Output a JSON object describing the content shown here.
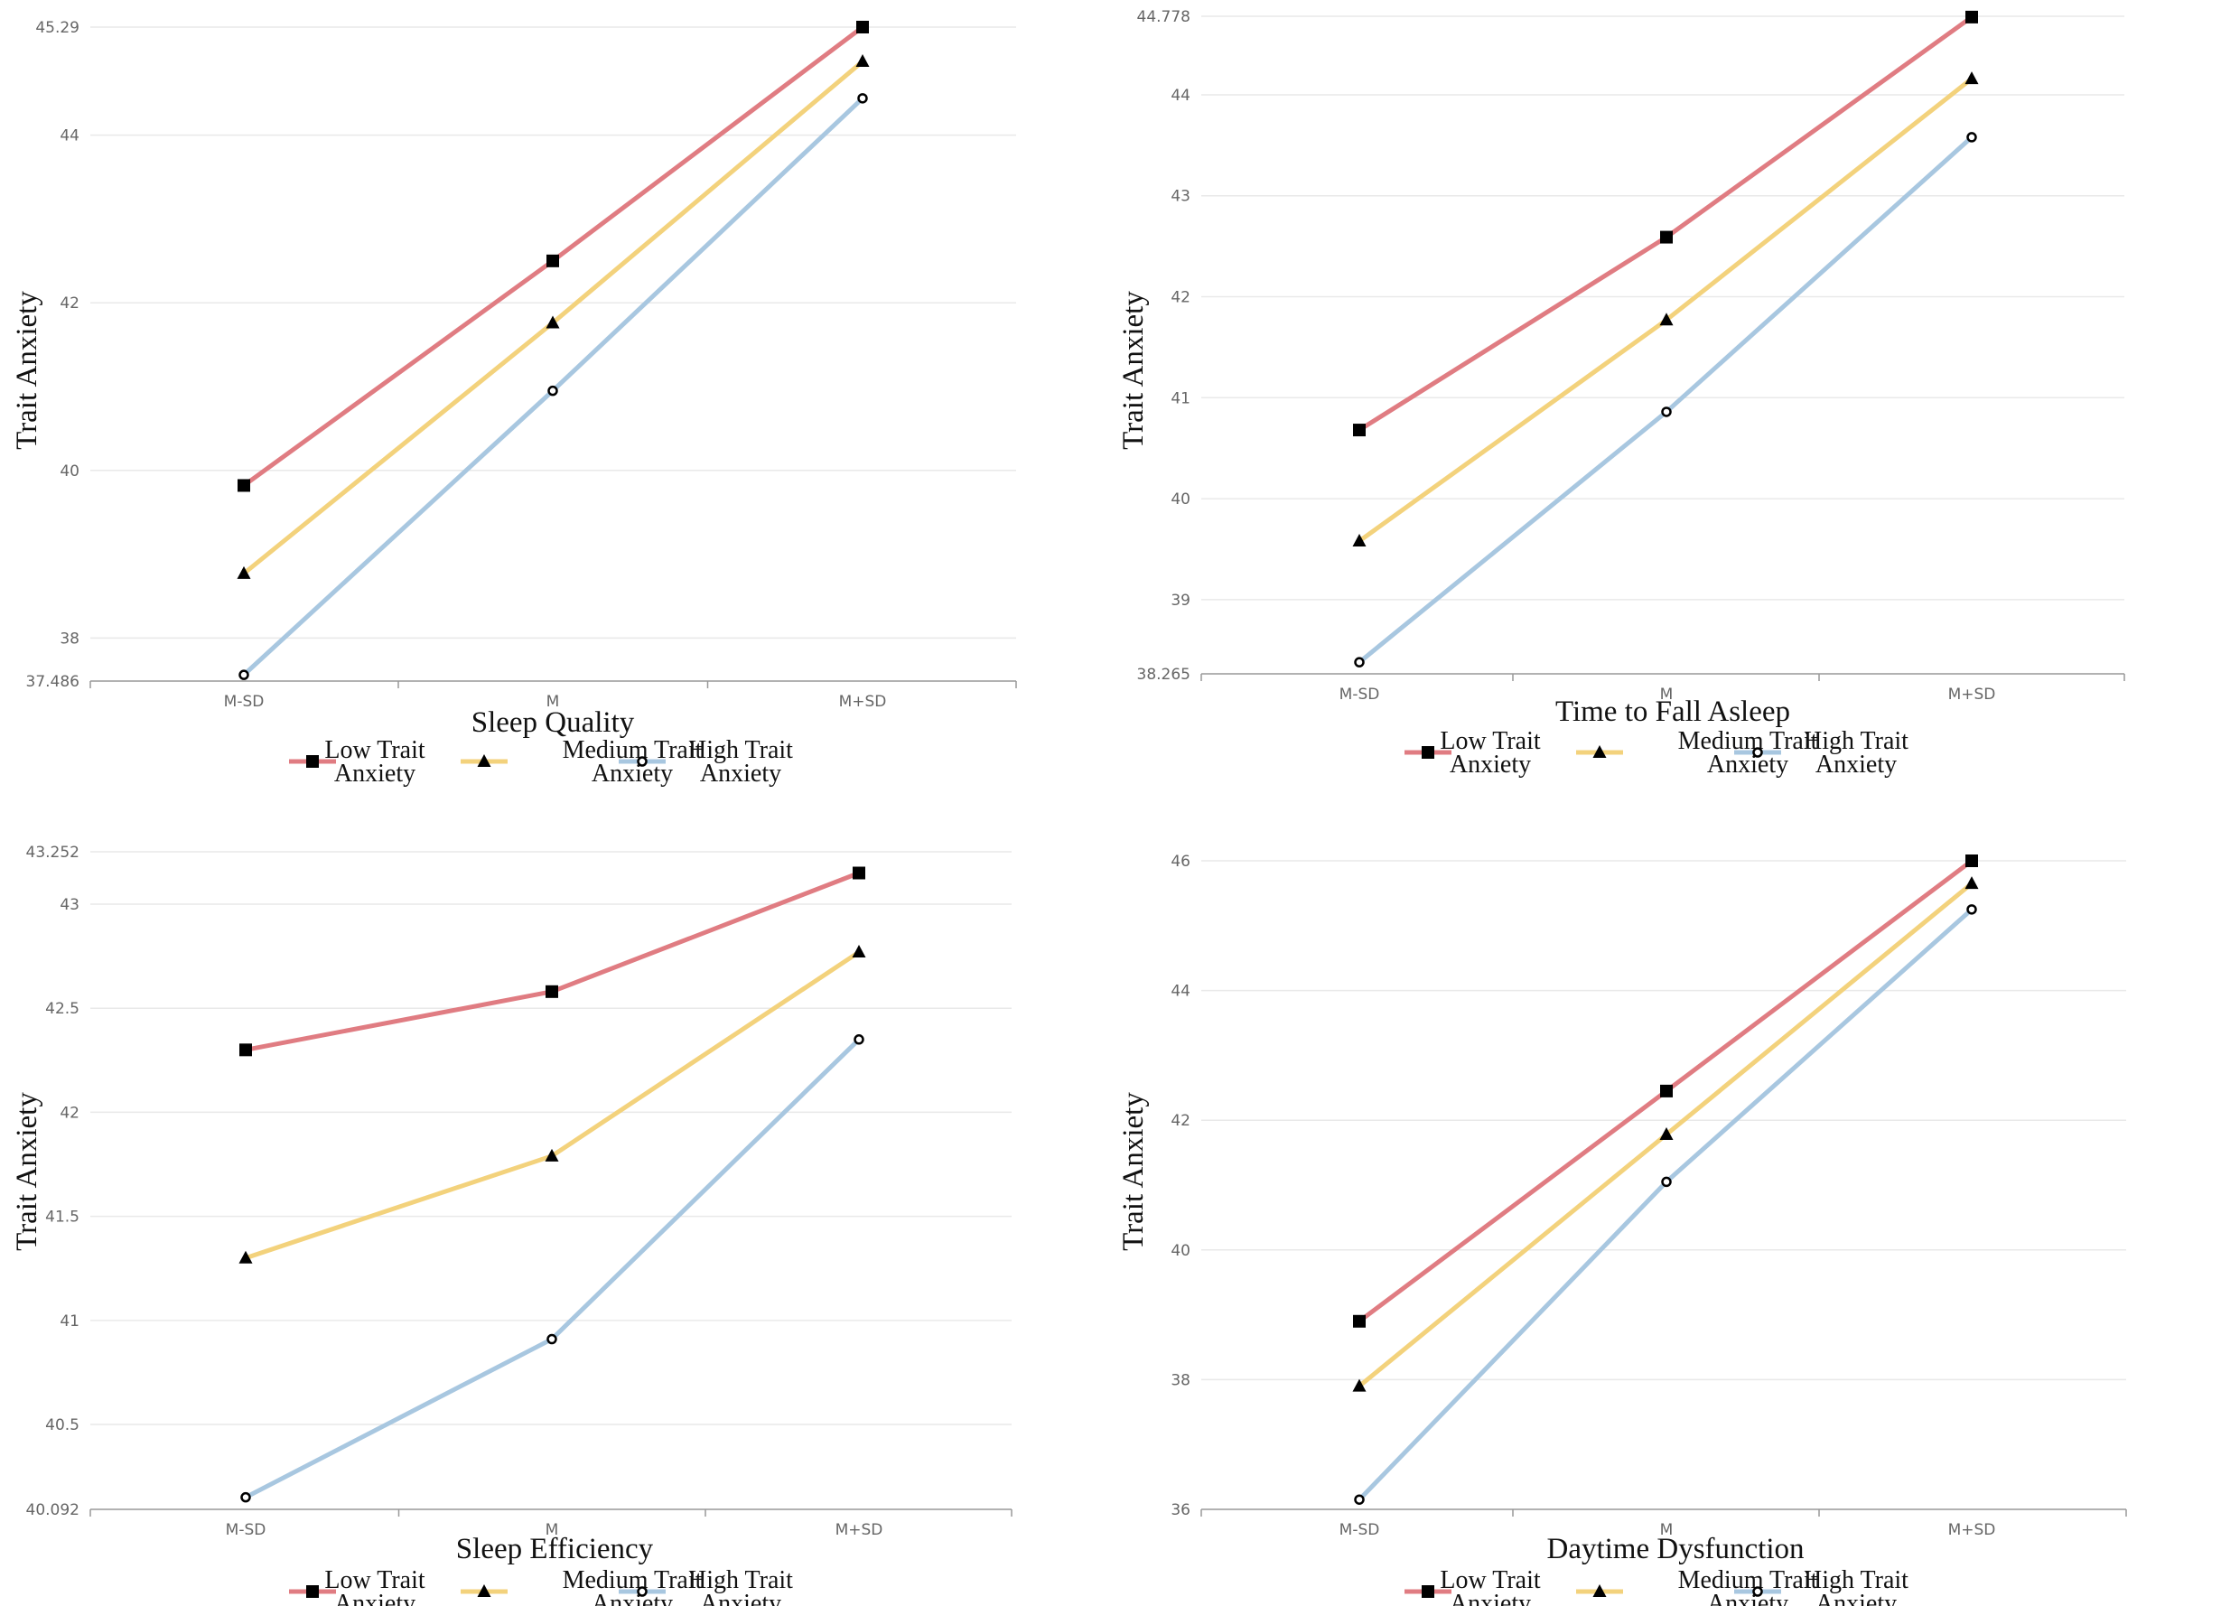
{
  "legend": [
    {
      "line1": "Low Trait",
      "line2": "Anxiety",
      "color": "#e07c82",
      "marker": "square"
    },
    {
      "line1": "Medium Trait",
      "line2": "Anxiety",
      "color": "#f3d27c",
      "marker": "triangle"
    },
    {
      "line1": "High Trait",
      "line2": "Anxiety",
      "color": "#a8c7e0",
      "marker": "circle"
    }
  ],
  "chart_data": [
    {
      "type": "line",
      "title": "Sleep Quality",
      "xlabel": "Sleep Quality",
      "ylabel": "Trait Anxiety",
      "categories": [
        "M-SD",
        "M",
        "M+SD"
      ],
      "ylim": [
        37.486,
        45.29
      ],
      "yticks": [
        "45.29",
        "44",
        "42",
        "40",
        "38",
        "37.486"
      ],
      "series": [
        {
          "name": "Low Trait Anxiety",
          "values": [
            39.82,
            42.5,
            45.29
          ]
        },
        {
          "name": "Medium Trait Anxiety",
          "values": [
            38.77,
            41.76,
            44.88
          ]
        },
        {
          "name": "High Trait Anxiety",
          "values": [
            37.56,
            40.95,
            44.44
          ]
        }
      ]
    },
    {
      "type": "line",
      "title": "Time to Fall Asleep",
      "xlabel": "Time to Fall Asleep",
      "ylabel": "Trait Anxiety",
      "categories": [
        "M-SD",
        "M",
        "M+SD"
      ],
      "ylim": [
        38.265,
        44.778
      ],
      "yticks": [
        "44.778",
        "44",
        "43",
        "42",
        "41",
        "40",
        "39",
        "38.265"
      ],
      "series": [
        {
          "name": "Low Trait Anxiety",
          "values": [
            40.68,
            42.59,
            44.77
          ]
        },
        {
          "name": "Medium Trait Anxiety",
          "values": [
            39.58,
            41.77,
            44.16
          ]
        },
        {
          "name": "High Trait Anxiety",
          "values": [
            38.38,
            40.86,
            43.58
          ]
        }
      ]
    },
    {
      "type": "line",
      "title": "Sleep Efficiency",
      "xlabel": "Sleep Efficiency",
      "ylabel": "Trait Anxiety",
      "categories": [
        "M-SD",
        "M",
        "M+SD"
      ],
      "ylim": [
        40.092,
        43.252
      ],
      "yticks": [
        "43.252",
        "43",
        "42.5",
        "42",
        "41.5",
        "41",
        "40.5",
        "40.092"
      ],
      "series": [
        {
          "name": "Low Trait Anxiety",
          "values": [
            42.3,
            42.58,
            43.15
          ]
        },
        {
          "name": "Medium Trait Anxiety",
          "values": [
            41.3,
            41.79,
            42.77
          ]
        },
        {
          "name": "High Trait Anxiety",
          "values": [
            40.15,
            40.91,
            42.35
          ]
        }
      ]
    },
    {
      "type": "line",
      "title": "Daytime Dysfunction",
      "xlabel": "Daytime Dysfunction",
      "ylabel": "Trait Anxiety",
      "categories": [
        "M-SD",
        "M",
        "M+SD"
      ],
      "ylim": [
        36,
        46.1
      ],
      "yticks": [
        "46",
        "44",
        "42",
        "40",
        "38",
        "36"
      ],
      "series": [
        {
          "name": "Low Trait Anxiety",
          "values": [
            38.9,
            42.45,
            46.0
          ]
        },
        {
          "name": "Medium Trait Anxiety",
          "values": [
            37.9,
            41.78,
            45.65
          ]
        },
        {
          "name": "High Trait Anxiety",
          "values": [
            36.15,
            41.05,
            45.25
          ]
        }
      ]
    }
  ]
}
